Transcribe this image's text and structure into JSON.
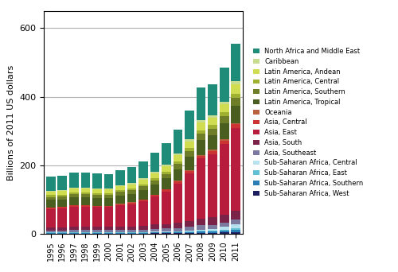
{
  "chart_data": {
    "type": "bar",
    "stacked": true,
    "grid": true,
    "legend": "right",
    "ylabel": "Billions of 2011 US dollars",
    "categories": [
      "1995",
      "1996",
      "1997",
      "1998",
      "1999",
      "2000",
      "2001",
      "2002",
      "2003",
      "2004",
      "2005",
      "2006",
      "2007",
      "2008",
      "2009",
      "2010",
      "2011"
    ],
    "ylim": [
      0,
      650
    ],
    "yticks": [
      0,
      200,
      400,
      600
    ],
    "series": [
      {
        "name": "Sub-Saharan Africa, West",
        "color": "#1c1f5e",
        "values": [
          1,
          1,
          1,
          1,
          1,
          1,
          1,
          1,
          1,
          2,
          2,
          2,
          2,
          3,
          3,
          4,
          5
        ]
      },
      {
        "name": "Sub-Saharan Africa, Southern",
        "color": "#2b7db5",
        "values": [
          2,
          2,
          2,
          2,
          2,
          2,
          2,
          2,
          2,
          2,
          2,
          3,
          3,
          4,
          4,
          5,
          6
        ]
      },
      {
        "name": "Sub-Saharan Africa, East",
        "color": "#62c0d5",
        "values": [
          1,
          1,
          1,
          1,
          1,
          1,
          1,
          1,
          2,
          2,
          2,
          2,
          3,
          3,
          3,
          4,
          5
        ]
      },
      {
        "name": "Sub-Saharan Africa, Central",
        "color": "#b8e2ed",
        "values": [
          1,
          1,
          1,
          1,
          1,
          1,
          1,
          1,
          1,
          1,
          1,
          1,
          2,
          3,
          4,
          7,
          11
        ]
      },
      {
        "name": "Asia, Southeast",
        "color": "#7b7a9e",
        "values": [
          5,
          5,
          6,
          6,
          6,
          6,
          6,
          7,
          7,
          8,
          9,
          9,
          10,
          12,
          12,
          13,
          14
        ]
      },
      {
        "name": "Asia, South",
        "color": "#7a2248",
        "values": [
          8,
          8,
          9,
          9,
          9,
          9,
          10,
          10,
          11,
          12,
          13,
          15,
          17,
          20,
          22,
          24,
          27
        ]
      },
      {
        "name": "Asia, East",
        "color": "#b81c3c",
        "values": [
          55,
          57,
          60,
          60,
          58,
          58,
          62,
          65,
          72,
          82,
          95,
          115,
          140,
          175,
          185,
          205,
          240
        ]
      },
      {
        "name": "Asia, Central",
        "color": "#cc3333",
        "values": [
          3,
          3,
          3,
          3,
          3,
          3,
          4,
          4,
          4,
          5,
          5,
          6,
          7,
          8,
          9,
          10,
          11
        ]
      },
      {
        "name": "Oceania",
        "color": "#b86040",
        "values": [
          1,
          1,
          1,
          1,
          1,
          1,
          1,
          1,
          1,
          1,
          2,
          2,
          2,
          2,
          3,
          3,
          3
        ]
      },
      {
        "name": "Latin America, Tropical",
        "color": "#4a5e20",
        "values": [
          22,
          22,
          23,
          23,
          23,
          23,
          24,
          25,
          27,
          29,
          31,
          34,
          38,
          43,
          43,
          47,
          52
        ]
      },
      {
        "name": "Latin America, Southern",
        "color": "#6e7e28",
        "values": [
          9,
          9,
          9,
          9,
          9,
          9,
          10,
          10,
          11,
          12,
          13,
          15,
          17,
          19,
          19,
          21,
          23
        ]
      },
      {
        "name": "Latin America, Central",
        "color": "#a0b030",
        "values": [
          5,
          5,
          5,
          5,
          5,
          5,
          6,
          6,
          6,
          7,
          7,
          8,
          9,
          10,
          10,
          11,
          12
        ]
      },
      {
        "name": "Latin America, Andean",
        "color": "#d0dd50",
        "values": [
          10,
          10,
          11,
          11,
          11,
          11,
          11,
          12,
          13,
          14,
          15,
          17,
          19,
          22,
          22,
          24,
          27
        ]
      },
      {
        "name": "Caribbean",
        "color": "#c8dc90",
        "values": [
          3,
          3,
          3,
          3,
          3,
          3,
          3,
          3,
          4,
          4,
          5,
          5,
          6,
          7,
          7,
          8,
          9
        ]
      },
      {
        "name": "North Africa and Middle East",
        "color": "#1e8c78",
        "values": [
          40,
          42,
          44,
          44,
          43,
          41,
          43,
          46,
          50,
          56,
          62,
          70,
          85,
          95,
          90,
          98,
          110
        ]
      }
    ]
  }
}
